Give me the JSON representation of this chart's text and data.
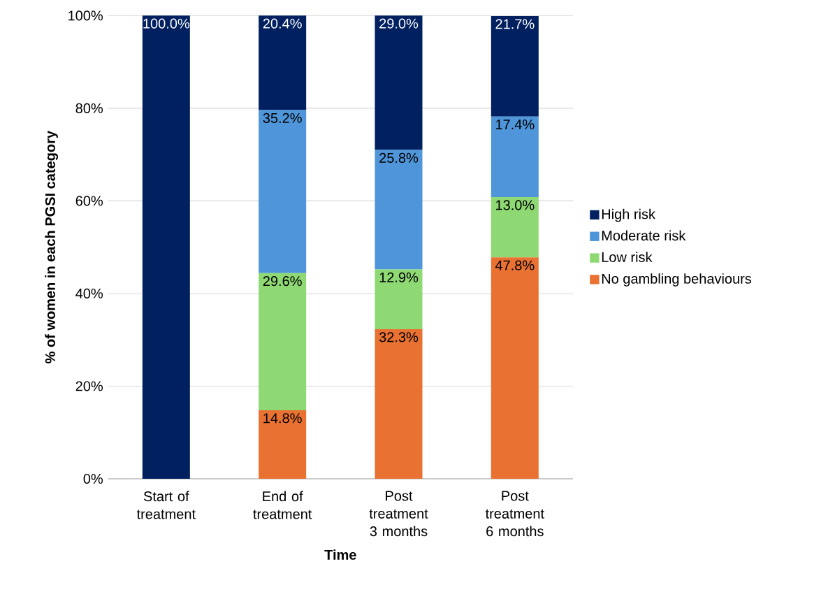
{
  "chart_data": {
    "type": "bar",
    "stacked": true,
    "xlabel": "Time",
    "ylabel": "% of women in each PGSI category",
    "categories": [
      "Start of treatment",
      "End of treatment",
      "Post treatment 3 months",
      "Post treatment 6 months"
    ],
    "series": [
      {
        "name": "No gambling behaviours",
        "color": "#e97132",
        "values": [
          0,
          14.8,
          32.3,
          47.8
        ],
        "value_labels": [
          null,
          "14.8%",
          "32.3%",
          "47.8%"
        ]
      },
      {
        "name": "Low risk",
        "color": "#8ed973",
        "values": [
          0,
          29.6,
          12.9,
          13.0
        ],
        "value_labels": [
          null,
          "29.6%",
          "12.9%",
          "13.0%"
        ]
      },
      {
        "name": "Moderate risk",
        "color": "#4e95d9",
        "values": [
          0,
          35.2,
          25.8,
          17.4
        ],
        "value_labels": [
          null,
          "35.2%",
          "25.8%",
          "17.4%"
        ]
      },
      {
        "name": "High risk",
        "color": "#002060",
        "values": [
          100,
          20.4,
          29.0,
          21.7
        ],
        "value_labels": [
          "100.0%",
          "20.4%",
          "29.0%",
          "21.7%"
        ]
      }
    ],
    "ylim": [
      0,
      100
    ],
    "yticks": [
      {
        "value": 0,
        "label": "0%"
      },
      {
        "value": 20,
        "label": "20%"
      },
      {
        "value": 40,
        "label": "40%"
      },
      {
        "value": 60,
        "label": "60%"
      },
      {
        "value": 80,
        "label": "80%"
      },
      {
        "value": 100,
        "label": "100%"
      }
    ],
    "grid": "y",
    "legend": "right"
  }
}
